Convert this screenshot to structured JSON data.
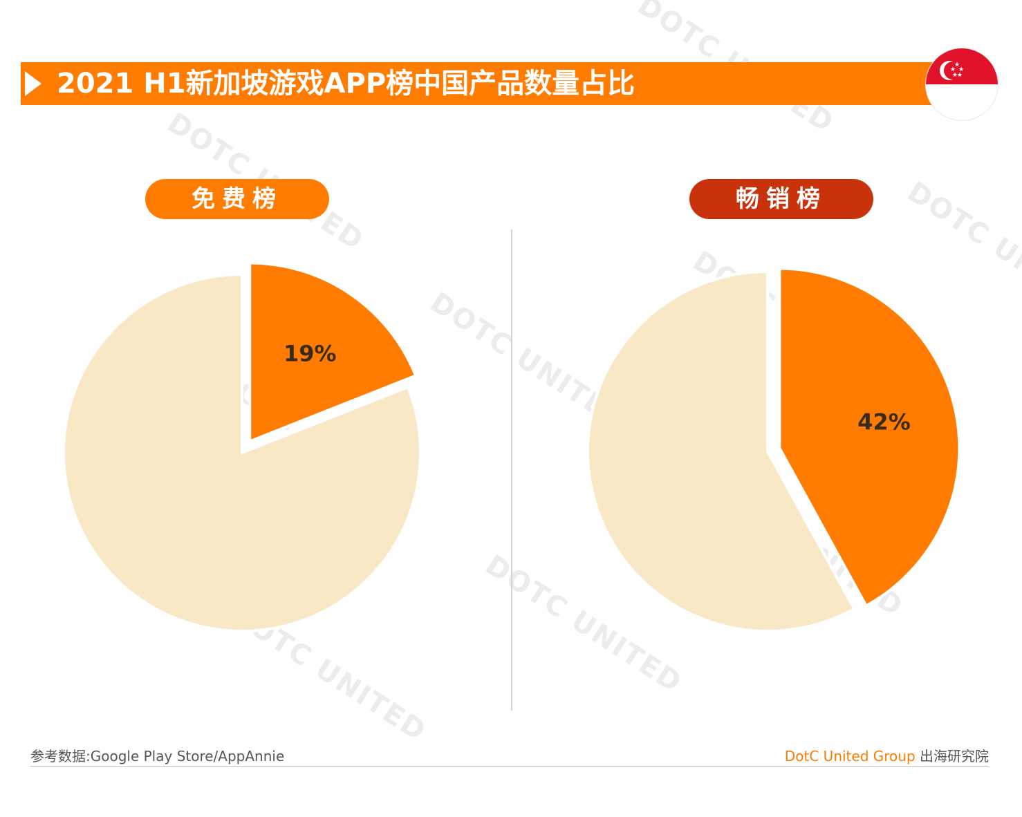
{
  "title": "2021 H1新加坡游戏APP榜中国产品数量占比",
  "flag_icon": "singapore-flag-icon",
  "colors": {
    "accent": "#ff7c00",
    "dark_accent": "#c9330b",
    "pie_light": "#f9e8c5",
    "pie_highlight": "#ff7c00"
  },
  "chart_data": [
    {
      "type": "pie",
      "title": "免费榜",
      "slices": [
        {
          "name": "",
          "value": 19,
          "label": "19%",
          "color": "#ff7c00",
          "exploded": true
        },
        {
          "name": "",
          "value": 81,
          "label": "",
          "color": "#f9e8c5",
          "exploded": false
        }
      ]
    },
    {
      "type": "pie",
      "title": "畅销榜",
      "slices": [
        {
          "name": "",
          "value": 42,
          "label": "42%",
          "color": "#ff7c00",
          "exploded": true
        },
        {
          "name": "",
          "value": 58,
          "label": "",
          "color": "#f9e8c5",
          "exploded": false
        }
      ]
    }
  ],
  "footer": {
    "source": "参考数据:Google Play Store/AppAnnie",
    "brand": "DotC United Group",
    "brand_cn": " 出海研究院"
  },
  "watermark": "DOTC UNITED"
}
